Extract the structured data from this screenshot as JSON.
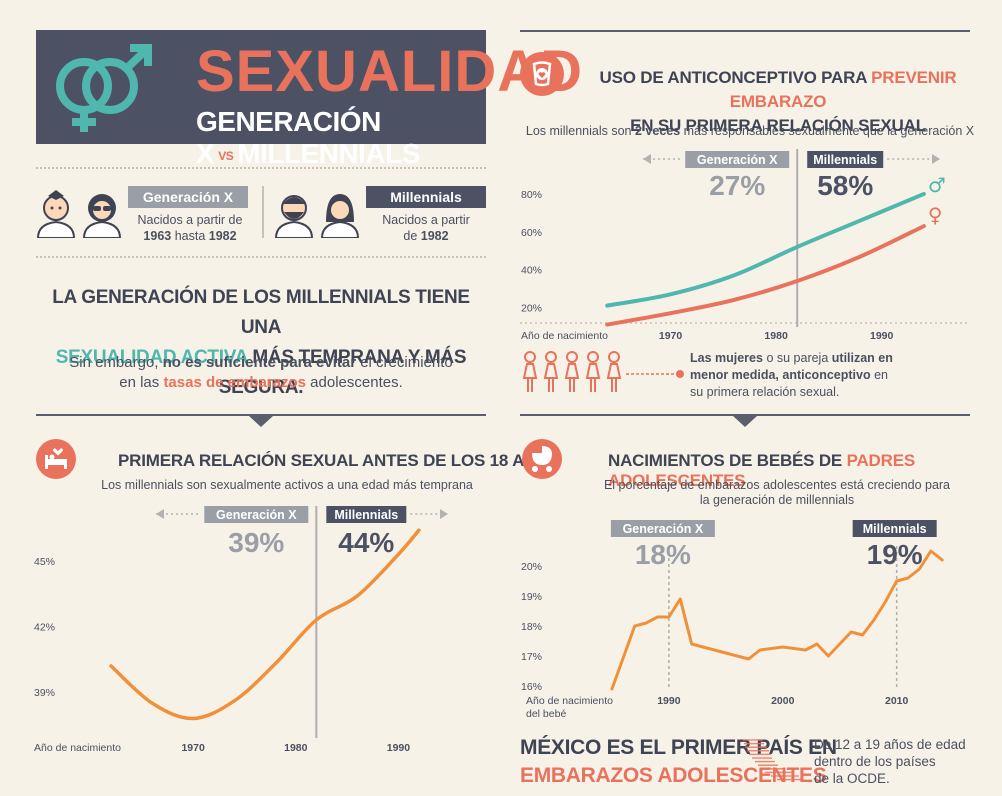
{
  "header": {
    "title": "SEXUALIDAD",
    "subtitle_left": "GENERACIÓN X",
    "subtitle_vs": "VS",
    "subtitle_right": "MILLENNIALS"
  },
  "generations": {
    "genx_label": "Generación X",
    "genx_desc_1": "Nacidos a partir de",
    "genx_desc_2_pre": "1963",
    "genx_desc_2_mid": " hasta ",
    "genx_desc_2_post": "1982",
    "mil_label": "Millennials",
    "mil_desc_1": "Nacidos a partir",
    "mil_desc_2_pre": "de ",
    "mil_desc_2_post": "1982"
  },
  "intro": {
    "line1": "LA GENERACIÓN DE LOS MILLENNIALS TIENE UNA",
    "line2_a": "SEXUALIDAD ACTIVA",
    "line2_b": " MÁS TEMPRANA Y MÁS SEGURA.",
    "body1_a": "Sin embargo, ",
    "body1_b": "no es suficiente para evitar",
    "body1_c": " el crecimiento",
    "body2_a": "en las ",
    "body2_b": "tasas de embarazos",
    "body2_c": " adolescentes."
  },
  "contraception": {
    "title_a": "USO DE ANTICONCEPTIVO PARA ",
    "title_b": "PREVENIR EMBARAZO",
    "title_c": "EN SU PRIMERA RELACIÓN SEXUAL",
    "sub_a": "Los millennials son ",
    "sub_b": "2 veces",
    "sub_c": " más responsables sexualmente que la generación X",
    "genx_label": "Generación X",
    "mil_label": "Millennials",
    "genx_pct": "27%",
    "mil_pct": "58%",
    "male_symbol": "♂",
    "female_symbol": "♀",
    "note_a": "Las mujeres",
    "note_b": " o su pareja ",
    "note_c": "utilizan en",
    "note_d": "menor medida, anticonceptivo",
    "note_e": " en",
    "note_f": "su primera relación sexual.",
    "xlabel": "Año de nacimiento"
  },
  "first_sex": {
    "title": "PRIMERA RELACIÓN SEXUAL ANTES DE LOS 18 AÑOS",
    "sub": "Los millennials son sexualmente activos a una edad más temprana",
    "genx_label": "Generación X",
    "mil_label": "Millennials",
    "genx_pct": "39%",
    "mil_pct": "44%",
    "xlabel": "Año de nacimiento"
  },
  "births": {
    "title_a": "NACIMIENTOS DE BEBÉS DE ",
    "title_b": "PADRES ADOLESCENTES",
    "sub1": "El porcentaje de embarazos adolescentes está creciendo para",
    "sub2": "la generación de millennials",
    "genx_label": "Generación X",
    "mil_label": "Millennials",
    "genx_pct": "18%",
    "mil_pct": "19%",
    "xlabel1": "Año de nacimiento",
    "xlabel2": "del bebé"
  },
  "mexico": {
    "line1": "MÉXICO ES EL PRIMER PAÍS EN",
    "line2": "EMBARAZOS ADOLESCENTES",
    "note1": "De 12 a 19 años de edad",
    "note2": "dentro de los países",
    "note3": "de la OCDE."
  },
  "colors": {
    "accent": "#e8725c",
    "teal": "#4fb7ae",
    "dark": "#4c5264",
    "gray": "#9a9ea6",
    "orange_line": "#f0913a",
    "bg": "#f7f2e7"
  },
  "chart_data": [
    {
      "type": "line",
      "title": "USO DE ANTICONCEPTIVO PARA PREVENIR EMBARAZO EN SU PRIMERA RELACIÓN SEXUAL",
      "xlabel": "Año de nacimiento",
      "xticks": [
        "1970",
        "1980",
        "1990"
      ],
      "yticks": [
        "20%",
        "40%",
        "60%",
        "80%"
      ],
      "ylim": [
        15,
        90
      ],
      "xlim": [
        1960,
        1996
      ],
      "series": [
        {
          "name": "♂",
          "color": "#4fb7ae",
          "x": [
            1964,
            1970,
            1976,
            1982,
            1988,
            1994
          ],
          "y": [
            21,
            27,
            37,
            52,
            66,
            80
          ]
        },
        {
          "name": "♀",
          "color": "#e8725c",
          "x": [
            1964,
            1970,
            1976,
            1982,
            1988,
            1994
          ],
          "y": [
            11,
            17,
            24,
            34,
            47,
            63
          ]
        }
      ],
      "divider_x": 1982,
      "annotations": {
        "Generación X": "27%",
        "Millennials": "58%"
      }
    },
    {
      "type": "line",
      "title": "PRIMERA RELACIÓN SEXUAL ANTES DE LOS 18 AÑOS",
      "xlabel": "Año de nacimiento",
      "xticks": [
        "1970",
        "1980",
        "1990"
      ],
      "yticks": [
        "39%",
        "42%",
        "45%"
      ],
      "ylim": [
        37,
        46.5
      ],
      "xlim": [
        1958,
        1996
      ],
      "series": [
        {
          "name": "",
          "color": "#f0913a",
          "x": [
            1962,
            1966,
            1970,
            1974,
            1978,
            1982,
            1986,
            1990,
            1992
          ],
          "y": [
            40.2,
            38.5,
            37.8,
            38.6,
            40.3,
            42.3,
            43.4,
            45.3,
            46.4
          ]
        }
      ],
      "divider_x": 1982,
      "annotations": {
        "Generación X": "39%",
        "Millennials": "44%"
      }
    },
    {
      "type": "line",
      "title": "NACIMIENTOS DE BEBÉS DE PADRES ADOLESCENTES",
      "xlabel": "Año de nacimiento del bebé",
      "xticks": [
        "1990",
        "2000",
        "2010"
      ],
      "yticks": [
        "16%",
        "17%",
        "18%",
        "19%",
        "20%"
      ],
      "ylim": [
        15.8,
        20.6
      ],
      "xlim": [
        1980,
        2016
      ],
      "series": [
        {
          "name": "",
          "color": "#f0913a",
          "x": [
            1985,
            1987,
            1988,
            1989,
            1990,
            1991,
            1992,
            1993,
            1995,
            1997,
            1998,
            2000,
            2002,
            2003,
            2004,
            2005,
            2006,
            2007,
            2008,
            2009,
            2010,
            2011,
            2012,
            2013,
            2014
          ],
          "y": [
            15.9,
            18.0,
            18.1,
            18.3,
            18.3,
            18.9,
            17.4,
            17.3,
            17.1,
            16.9,
            17.2,
            17.3,
            17.2,
            17.4,
            17.0,
            17.4,
            17.8,
            17.7,
            18.2,
            18.8,
            19.5,
            19.6,
            19.9,
            20.5,
            20.2
          ]
        }
      ],
      "divider_x": [
        1990,
        2010
      ],
      "annotations": {
        "Generación X": "18%",
        "Millennials": "19%"
      }
    }
  ]
}
